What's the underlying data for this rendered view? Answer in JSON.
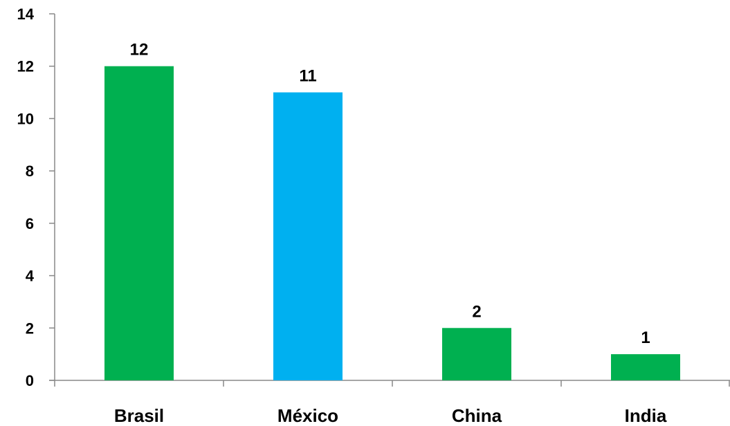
{
  "chart_data": {
    "type": "bar",
    "title": "",
    "xlabel": "",
    "ylabel": "",
    "categories": [
      "Brasil",
      "México",
      "China",
      "India"
    ],
    "values": [
      12,
      11,
      2,
      1
    ],
    "data_labels": [
      "12",
      "11",
      "2",
      "1"
    ],
    "bar_colors": [
      "#00B050",
      "#00B0F0",
      "#00B050",
      "#00B050"
    ],
    "ylim": [
      0,
      14
    ],
    "yticks": [
      0,
      2,
      4,
      6,
      8,
      10,
      12,
      14
    ],
    "ytick_labels": [
      "0",
      "2",
      "4",
      "6",
      "8",
      "10",
      "12",
      "14"
    ],
    "grid": false,
    "legend": "none"
  }
}
